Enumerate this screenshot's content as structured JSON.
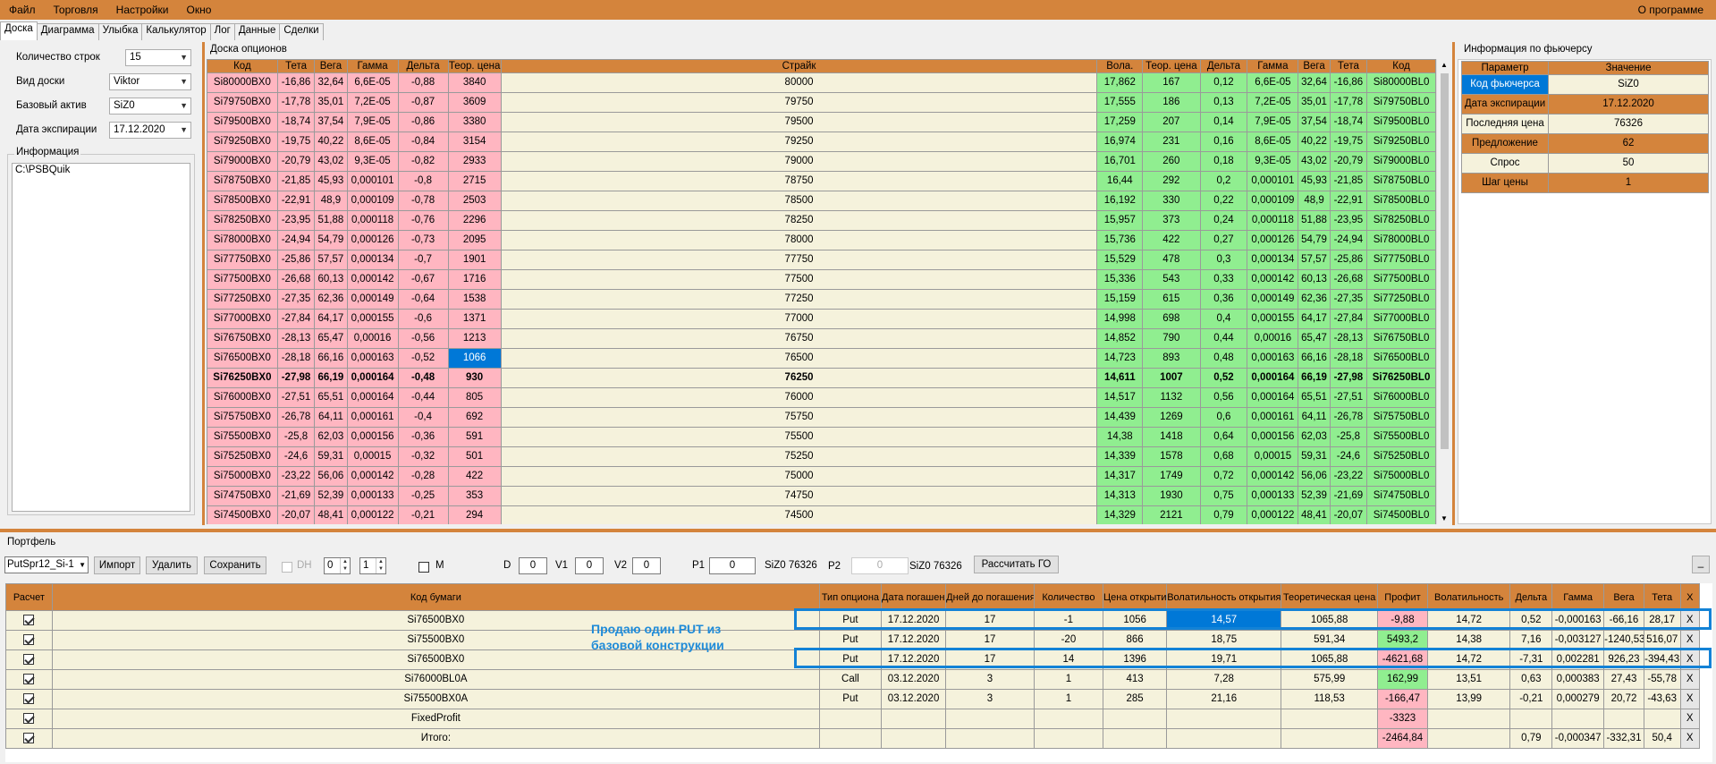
{
  "menu": {
    "file": "Файл",
    "trade": "Торговля",
    "settings": "Настройки",
    "window": "Окно",
    "about": "О программе"
  },
  "tabs": [
    "Доска",
    "Диаграмма",
    "Улыбка",
    "Калькулятор",
    "Лог",
    "Данные",
    "Сделки"
  ],
  "left": {
    "rows_label": "Количество строк",
    "rows_value": "15",
    "board_label": "Вид доски",
    "board_value": "Viktor",
    "asset_label": "Базовый актив",
    "asset_value": "SiZ0",
    "exp_label": "Дата экспирации",
    "exp_value": "17.12.2020",
    "info_title": "Информация",
    "info_text": "C:\\PSBQuik"
  },
  "board": {
    "title": "Доска опционов",
    "headers": [
      "Код",
      "Тета",
      "Вега",
      "Гамма",
      "Дельта",
      "Теор. цена",
      "Страйк",
      "Вола.",
      "Теор. цена",
      "Дельта",
      "Гамма",
      "Вега",
      "Тета",
      "Код"
    ],
    "rows": [
      [
        "Si80000BX0",
        "-16,86",
        "32,64",
        "6,6E-05",
        "-0,88",
        "3840",
        "80000",
        "17,862",
        "167",
        "0,12",
        "6,6E-05",
        "32,64",
        "-16,86",
        "Si80000BL0"
      ],
      [
        "Si79750BX0",
        "-17,78",
        "35,01",
        "7,2E-05",
        "-0,87",
        "3609",
        "79750",
        "17,555",
        "186",
        "0,13",
        "7,2E-05",
        "35,01",
        "-17,78",
        "Si79750BL0"
      ],
      [
        "Si79500BX0",
        "-18,74",
        "37,54",
        "7,9E-05",
        "-0,86",
        "3380",
        "79500",
        "17,259",
        "207",
        "0,14",
        "7,9E-05",
        "37,54",
        "-18,74",
        "Si79500BL0"
      ],
      [
        "Si79250BX0",
        "-19,75",
        "40,22",
        "8,6E-05",
        "-0,84",
        "3154",
        "79250",
        "16,974",
        "231",
        "0,16",
        "8,6E-05",
        "40,22",
        "-19,75",
        "Si79250BL0"
      ],
      [
        "Si79000BX0",
        "-20,79",
        "43,02",
        "9,3E-05",
        "-0,82",
        "2933",
        "79000",
        "16,701",
        "260",
        "0,18",
        "9,3E-05",
        "43,02",
        "-20,79",
        "Si79000BL0"
      ],
      [
        "Si78750BX0",
        "-21,85",
        "45,93",
        "0,000101",
        "-0,8",
        "2715",
        "78750",
        "16,44",
        "292",
        "0,2",
        "0,000101",
        "45,93",
        "-21,85",
        "Si78750BL0"
      ],
      [
        "Si78500BX0",
        "-22,91",
        "48,9",
        "0,000109",
        "-0,78",
        "2503",
        "78500",
        "16,192",
        "330",
        "0,22",
        "0,000109",
        "48,9",
        "-22,91",
        "Si78500BL0"
      ],
      [
        "Si78250BX0",
        "-23,95",
        "51,88",
        "0,000118",
        "-0,76",
        "2296",
        "78250",
        "15,957",
        "373",
        "0,24",
        "0,000118",
        "51,88",
        "-23,95",
        "Si78250BL0"
      ],
      [
        "Si78000BX0",
        "-24,94",
        "54,79",
        "0,000126",
        "-0,73",
        "2095",
        "78000",
        "15,736",
        "422",
        "0,27",
        "0,000126",
        "54,79",
        "-24,94",
        "Si78000BL0"
      ],
      [
        "Si77750BX0",
        "-25,86",
        "57,57",
        "0,000134",
        "-0,7",
        "1901",
        "77750",
        "15,529",
        "478",
        "0,3",
        "0,000134",
        "57,57",
        "-25,86",
        "Si77750BL0"
      ],
      [
        "Si77500BX0",
        "-26,68",
        "60,13",
        "0,000142",
        "-0,67",
        "1716",
        "77500",
        "15,336",
        "543",
        "0,33",
        "0,000142",
        "60,13",
        "-26,68",
        "Si77500BL0"
      ],
      [
        "Si77250BX0",
        "-27,35",
        "62,36",
        "0,000149",
        "-0,64",
        "1538",
        "77250",
        "15,159",
        "615",
        "0,36",
        "0,000149",
        "62,36",
        "-27,35",
        "Si77250BL0"
      ],
      [
        "Si77000BX0",
        "-27,84",
        "64,17",
        "0,000155",
        "-0,6",
        "1371",
        "77000",
        "14,998",
        "698",
        "0,4",
        "0,000155",
        "64,17",
        "-27,84",
        "Si77000BL0"
      ],
      [
        "Si76750BX0",
        "-28,13",
        "65,47",
        "0,00016",
        "-0,56",
        "1213",
        "76750",
        "14,852",
        "790",
        "0,44",
        "0,00016",
        "65,47",
        "-28,13",
        "Si76750BL0"
      ],
      [
        "Si76500BX0",
        "-28,18",
        "66,16",
        "0,000163",
        "-0,52",
        "1066",
        "76500",
        "14,723",
        "893",
        "0,48",
        "0,000163",
        "66,16",
        "-28,18",
        "Si76500BL0"
      ],
      [
        "Si76250BX0",
        "-27,98",
        "66,19",
        "0,000164",
        "-0,48",
        "930",
        "76250",
        "14,611",
        "1007",
        "0,52",
        "0,000164",
        "66,19",
        "-27,98",
        "Si76250BL0"
      ],
      [
        "Si76000BX0",
        "-27,51",
        "65,51",
        "0,000164",
        "-0,44",
        "805",
        "76000",
        "14,517",
        "1132",
        "0,56",
        "0,000164",
        "65,51",
        "-27,51",
        "Si76000BL0"
      ],
      [
        "Si75750BX0",
        "-26,78",
        "64,11",
        "0,000161",
        "-0,4",
        "692",
        "75750",
        "14,439",
        "1269",
        "0,6",
        "0,000161",
        "64,11",
        "-26,78",
        "Si75750BL0"
      ],
      [
        "Si75500BX0",
        "-25,8",
        "62,03",
        "0,000156",
        "-0,36",
        "591",
        "75500",
        "14,38",
        "1418",
        "0,64",
        "0,000156",
        "62,03",
        "-25,8",
        "Si75500BL0"
      ],
      [
        "Si75250BX0",
        "-24,6",
        "59,31",
        "0,00015",
        "-0,32",
        "501",
        "75250",
        "14,339",
        "1578",
        "0,68",
        "0,00015",
        "59,31",
        "-24,6",
        "Si75250BL0"
      ],
      [
        "Si75000BX0",
        "-23,22",
        "56,06",
        "0,000142",
        "-0,28",
        "422",
        "75000",
        "14,317",
        "1749",
        "0,72",
        "0,000142",
        "56,06",
        "-23,22",
        "Si75000BL0"
      ],
      [
        "Si74750BX0",
        "-21,69",
        "52,39",
        "0,000133",
        "-0,25",
        "353",
        "74750",
        "14,313",
        "1930",
        "0,75",
        "0,000133",
        "52,39",
        "-21,69",
        "Si74750BL0"
      ],
      [
        "Si74500BX0",
        "-20,07",
        "48,41",
        "0,000122",
        "-0,21",
        "294",
        "74500",
        "14,329",
        "2121",
        "0,79",
        "0,000122",
        "48,41",
        "-20,07",
        "Si74500BL0"
      ]
    ]
  },
  "futures": {
    "title": "Информация по фьючерсу",
    "headers": [
      "Параметр",
      "Значение"
    ],
    "rows": [
      [
        "Код фьючерса",
        "SiZ0"
      ],
      [
        "Дата экспирации",
        "17.12.2020"
      ],
      [
        "Последняя цена",
        "76326"
      ],
      [
        "Предложение",
        "62"
      ],
      [
        "Спрос",
        "50"
      ],
      [
        "Шаг цены",
        "1"
      ]
    ]
  },
  "portfolio": {
    "title": "Портфель",
    "select": "PutSpr12_Si-1",
    "import": "Импорт",
    "delete": "Удалить",
    "save": "Сохранить",
    "dh": "DH",
    "spin1": "0",
    "spin2": "1",
    "m": "M",
    "d_label": "D",
    "d_val": "0",
    "v1_label": "V1",
    "v1_val": "0",
    "v2_label": "V2",
    "v2_val": "0",
    "p1_label": "P1",
    "p1_val": "0",
    "p1_info": "SiZ0 76326",
    "p2_label": "P2",
    "p2_val": "0",
    "p2_info": "SiZ0 76326",
    "calc": "Рассчитать ГО",
    "min": "_"
  },
  "ptable": {
    "headers": [
      "Расчет",
      "Код бумаги",
      "Тип опциона",
      "Дата погашения",
      "Дней до погашения",
      "Количество",
      "Цена открытия",
      "Волатильность открытия",
      "Теоретическая цена",
      "Профит",
      "Волатильность",
      "Дельта",
      "Гамма",
      "Вега",
      "Тета",
      "X"
    ],
    "rows": [
      [
        "Si76500BX0",
        "Put",
        "17.12.2020",
        "17",
        "-1",
        "1056",
        "14,57",
        "1065,88",
        "-9,88",
        "14,72",
        "0,52",
        "-0,000163",
        "-66,16",
        "28,17",
        "X"
      ],
      [
        "Si75500BX0",
        "Put",
        "17.12.2020",
        "17",
        "-20",
        "866",
        "18,75",
        "591,34",
        "5493,2",
        "14,38",
        "7,16",
        "-0,003127",
        "-1240,53",
        "516,07",
        "X"
      ],
      [
        "Si76500BX0",
        "Put",
        "17.12.2020",
        "17",
        "14",
        "1396",
        "19,71",
        "1065,88",
        "-4621,68",
        "14,72",
        "-7,31",
        "0,002281",
        "926,23",
        "-394,43",
        "X"
      ],
      [
        "Si76000BL0A",
        "Call",
        "03.12.2020",
        "3",
        "1",
        "413",
        "7,28",
        "575,99",
        "162,99",
        "13,51",
        "0,63",
        "0,000383",
        "27,43",
        "-55,78",
        "X"
      ],
      [
        "Si75500BX0A",
        "Put",
        "03.12.2020",
        "3",
        "1",
        "285",
        "21,16",
        "118,53",
        "-166,47",
        "13,99",
        "-0,21",
        "0,000279",
        "20,72",
        "-43,63",
        "X"
      ],
      [
        "FixedProfit",
        "",
        "",
        "",
        "",
        "",
        "",
        "",
        "-3323",
        "",
        "",
        "",
        "",
        "",
        "X"
      ],
      [
        "Итого:",
        "",
        "",
        "",
        "",
        "",
        "",
        "",
        "-2464,84",
        "",
        "0,79",
        "-0,000347",
        "-332,31",
        "50,4",
        "X"
      ]
    ]
  },
  "annotation": "Продаю один PUT из базовой конструкции"
}
